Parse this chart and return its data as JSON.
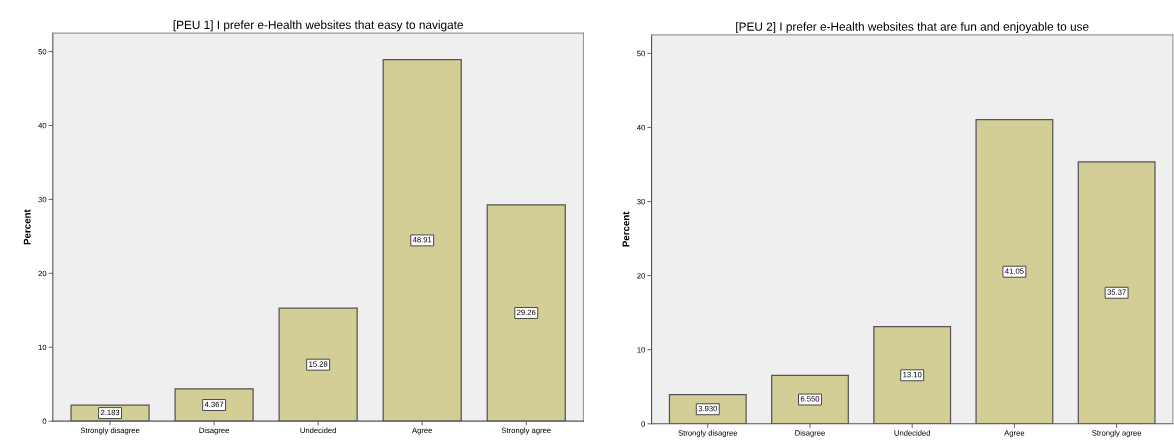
{
  "chart_data": [
    {
      "type": "bar",
      "title": "[PEU 1] I prefer e-Health websites that easy to navigate",
      "ylabel": "Percent",
      "categories": [
        "Strongly disagree",
        "Disagree",
        "Undecided",
        "Agree",
        "Strongly agree"
      ],
      "values": [
        2.183,
        4.367,
        15.28,
        48.91,
        29.26
      ],
      "value_labels": [
        "2.183",
        "4.367",
        "15.28",
        "48.91",
        "29.26"
      ],
      "color": "#d3cd96",
      "ylim": [
        0,
        52.5
      ],
      "yticks": [
        0,
        10,
        20,
        30,
        40,
        50
      ],
      "grid": false,
      "legend": false
    },
    {
      "type": "bar",
      "title": "[PEU 2] I prefer e-Health websites that are fun and enjoyable to use",
      "ylabel": "Percent",
      "categories": [
        "Strongly disagree",
        "Disagree",
        "Undecided",
        "Agree",
        "Strongly agree"
      ],
      "values": [
        3.93,
        6.55,
        13.1,
        41.05,
        35.37
      ],
      "value_labels": [
        "3.930",
        "6.550",
        "13.10",
        "41.05",
        "35.37"
      ],
      "color": "#d3cd96",
      "ylim": [
        0,
        52.5
      ],
      "yticks": [
        0,
        10,
        20,
        30,
        40,
        50
      ],
      "grid": false,
      "legend": false
    }
  ]
}
